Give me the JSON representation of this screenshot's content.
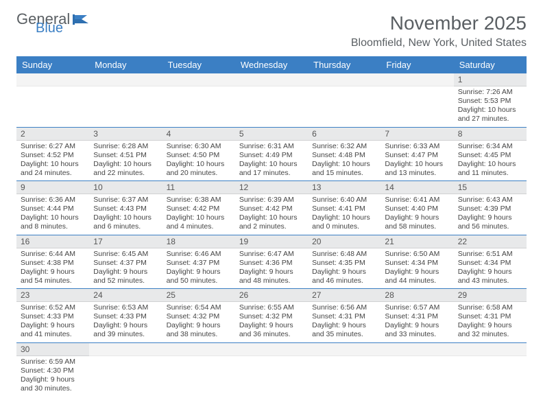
{
  "brand": {
    "part1": "General",
    "part2": "Blue"
  },
  "title": "November 2025",
  "location": "Bloomfield, New York, United States",
  "colors": {
    "header_bg": "#3b7fc4",
    "header_text": "#ffffff",
    "daynum_bg": "#e8e9ea",
    "border": "#3b7fc4",
    "text": "#444444",
    "title_text": "#5a5f63"
  },
  "weekdays": [
    "Sunday",
    "Monday",
    "Tuesday",
    "Wednesday",
    "Thursday",
    "Friday",
    "Saturday"
  ],
  "weeks": [
    [
      {
        "day": "",
        "sunrise": "",
        "sunset": "",
        "daylight": ""
      },
      {
        "day": "",
        "sunrise": "",
        "sunset": "",
        "daylight": ""
      },
      {
        "day": "",
        "sunrise": "",
        "sunset": "",
        "daylight": ""
      },
      {
        "day": "",
        "sunrise": "",
        "sunset": "",
        "daylight": ""
      },
      {
        "day": "",
        "sunrise": "",
        "sunset": "",
        "daylight": ""
      },
      {
        "day": "",
        "sunrise": "",
        "sunset": "",
        "daylight": ""
      },
      {
        "day": "1",
        "sunrise": "Sunrise: 7:26 AM",
        "sunset": "Sunset: 5:53 PM",
        "daylight": "Daylight: 10 hours and 27 minutes."
      }
    ],
    [
      {
        "day": "2",
        "sunrise": "Sunrise: 6:27 AM",
        "sunset": "Sunset: 4:52 PM",
        "daylight": "Daylight: 10 hours and 24 minutes."
      },
      {
        "day": "3",
        "sunrise": "Sunrise: 6:28 AM",
        "sunset": "Sunset: 4:51 PM",
        "daylight": "Daylight: 10 hours and 22 minutes."
      },
      {
        "day": "4",
        "sunrise": "Sunrise: 6:30 AM",
        "sunset": "Sunset: 4:50 PM",
        "daylight": "Daylight: 10 hours and 20 minutes."
      },
      {
        "day": "5",
        "sunrise": "Sunrise: 6:31 AM",
        "sunset": "Sunset: 4:49 PM",
        "daylight": "Daylight: 10 hours and 17 minutes."
      },
      {
        "day": "6",
        "sunrise": "Sunrise: 6:32 AM",
        "sunset": "Sunset: 4:48 PM",
        "daylight": "Daylight: 10 hours and 15 minutes."
      },
      {
        "day": "7",
        "sunrise": "Sunrise: 6:33 AM",
        "sunset": "Sunset: 4:47 PM",
        "daylight": "Daylight: 10 hours and 13 minutes."
      },
      {
        "day": "8",
        "sunrise": "Sunrise: 6:34 AM",
        "sunset": "Sunset: 4:45 PM",
        "daylight": "Daylight: 10 hours and 11 minutes."
      }
    ],
    [
      {
        "day": "9",
        "sunrise": "Sunrise: 6:36 AM",
        "sunset": "Sunset: 4:44 PM",
        "daylight": "Daylight: 10 hours and 8 minutes."
      },
      {
        "day": "10",
        "sunrise": "Sunrise: 6:37 AM",
        "sunset": "Sunset: 4:43 PM",
        "daylight": "Daylight: 10 hours and 6 minutes."
      },
      {
        "day": "11",
        "sunrise": "Sunrise: 6:38 AM",
        "sunset": "Sunset: 4:42 PM",
        "daylight": "Daylight: 10 hours and 4 minutes."
      },
      {
        "day": "12",
        "sunrise": "Sunrise: 6:39 AM",
        "sunset": "Sunset: 4:42 PM",
        "daylight": "Daylight: 10 hours and 2 minutes."
      },
      {
        "day": "13",
        "sunrise": "Sunrise: 6:40 AM",
        "sunset": "Sunset: 4:41 PM",
        "daylight": "Daylight: 10 hours and 0 minutes."
      },
      {
        "day": "14",
        "sunrise": "Sunrise: 6:41 AM",
        "sunset": "Sunset: 4:40 PM",
        "daylight": "Daylight: 9 hours and 58 minutes."
      },
      {
        "day": "15",
        "sunrise": "Sunrise: 6:43 AM",
        "sunset": "Sunset: 4:39 PM",
        "daylight": "Daylight: 9 hours and 56 minutes."
      }
    ],
    [
      {
        "day": "16",
        "sunrise": "Sunrise: 6:44 AM",
        "sunset": "Sunset: 4:38 PM",
        "daylight": "Daylight: 9 hours and 54 minutes."
      },
      {
        "day": "17",
        "sunrise": "Sunrise: 6:45 AM",
        "sunset": "Sunset: 4:37 PM",
        "daylight": "Daylight: 9 hours and 52 minutes."
      },
      {
        "day": "18",
        "sunrise": "Sunrise: 6:46 AM",
        "sunset": "Sunset: 4:37 PM",
        "daylight": "Daylight: 9 hours and 50 minutes."
      },
      {
        "day": "19",
        "sunrise": "Sunrise: 6:47 AM",
        "sunset": "Sunset: 4:36 PM",
        "daylight": "Daylight: 9 hours and 48 minutes."
      },
      {
        "day": "20",
        "sunrise": "Sunrise: 6:48 AM",
        "sunset": "Sunset: 4:35 PM",
        "daylight": "Daylight: 9 hours and 46 minutes."
      },
      {
        "day": "21",
        "sunrise": "Sunrise: 6:50 AM",
        "sunset": "Sunset: 4:34 PM",
        "daylight": "Daylight: 9 hours and 44 minutes."
      },
      {
        "day": "22",
        "sunrise": "Sunrise: 6:51 AM",
        "sunset": "Sunset: 4:34 PM",
        "daylight": "Daylight: 9 hours and 43 minutes."
      }
    ],
    [
      {
        "day": "23",
        "sunrise": "Sunrise: 6:52 AM",
        "sunset": "Sunset: 4:33 PM",
        "daylight": "Daylight: 9 hours and 41 minutes."
      },
      {
        "day": "24",
        "sunrise": "Sunrise: 6:53 AM",
        "sunset": "Sunset: 4:33 PM",
        "daylight": "Daylight: 9 hours and 39 minutes."
      },
      {
        "day": "25",
        "sunrise": "Sunrise: 6:54 AM",
        "sunset": "Sunset: 4:32 PM",
        "daylight": "Daylight: 9 hours and 38 minutes."
      },
      {
        "day": "26",
        "sunrise": "Sunrise: 6:55 AM",
        "sunset": "Sunset: 4:32 PM",
        "daylight": "Daylight: 9 hours and 36 minutes."
      },
      {
        "day": "27",
        "sunrise": "Sunrise: 6:56 AM",
        "sunset": "Sunset: 4:31 PM",
        "daylight": "Daylight: 9 hours and 35 minutes."
      },
      {
        "day": "28",
        "sunrise": "Sunrise: 6:57 AM",
        "sunset": "Sunset: 4:31 PM",
        "daylight": "Daylight: 9 hours and 33 minutes."
      },
      {
        "day": "29",
        "sunrise": "Sunrise: 6:58 AM",
        "sunset": "Sunset: 4:31 PM",
        "daylight": "Daylight: 9 hours and 32 minutes."
      }
    ],
    [
      {
        "day": "30",
        "sunrise": "Sunrise: 6:59 AM",
        "sunset": "Sunset: 4:30 PM",
        "daylight": "Daylight: 9 hours and 30 minutes."
      },
      {
        "day": "",
        "sunrise": "",
        "sunset": "",
        "daylight": ""
      },
      {
        "day": "",
        "sunrise": "",
        "sunset": "",
        "daylight": ""
      },
      {
        "day": "",
        "sunrise": "",
        "sunset": "",
        "daylight": ""
      },
      {
        "day": "",
        "sunrise": "",
        "sunset": "",
        "daylight": ""
      },
      {
        "day": "",
        "sunrise": "",
        "sunset": "",
        "daylight": ""
      },
      {
        "day": "",
        "sunrise": "",
        "sunset": "",
        "daylight": ""
      }
    ]
  ]
}
